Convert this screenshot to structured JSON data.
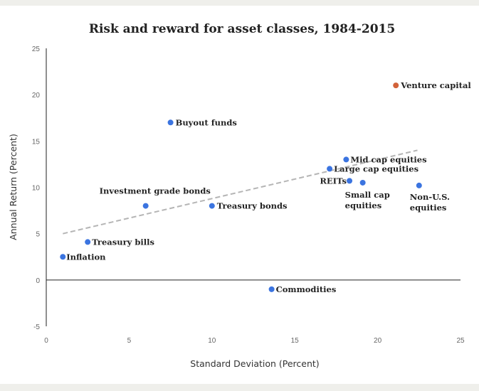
{
  "chart_data": {
    "type": "scatter",
    "title": "Risk and reward for asset classes, 1984-2015",
    "xlabel": "Standard Deviation (Percent)",
    "ylabel": "Annual Return (Percent)",
    "xlim": [
      0,
      25
    ],
    "ylim": [
      -5,
      25
    ],
    "xticks": [
      0,
      5,
      10,
      15,
      20,
      25
    ],
    "yticks": [
      -5,
      0,
      5,
      10,
      15,
      20,
      25
    ],
    "grid": false,
    "colors": {
      "default": "#3b74e0",
      "highlight": "#d2623a",
      "trendline": "#b5b5b5"
    },
    "trendline": {
      "x": [
        1,
        22.4
      ],
      "y": [
        5,
        14
      ]
    },
    "points": [
      {
        "label": "Venture capital",
        "x": 21.1,
        "y": 21.0,
        "highlight": true
      },
      {
        "label": "Buyout funds",
        "x": 7.5,
        "y": 17.0
      },
      {
        "label": "Mid cap equities",
        "x": 18.1,
        "y": 13.0
      },
      {
        "label": "Large cap equities",
        "x": 17.1,
        "y": 12.0
      },
      {
        "label": "REITs",
        "x": 18.3,
        "y": 10.7
      },
      {
        "label": "Small cap equities",
        "x": 19.1,
        "y": 10.5
      },
      {
        "label": "Non-U.S. equities",
        "x": 22.5,
        "y": 10.2
      },
      {
        "label": "Investment grade bonds",
        "x": 6.0,
        "y": 8.0
      },
      {
        "label": "Treasury bonds",
        "x": 10.0,
        "y": 8.0
      },
      {
        "label": "Treasury bills",
        "x": 2.5,
        "y": 4.1
      },
      {
        "label": "Inflation",
        "x": 1.0,
        "y": 2.5
      },
      {
        "label": "Commodities",
        "x": 13.6,
        "y": -1.0
      }
    ]
  }
}
